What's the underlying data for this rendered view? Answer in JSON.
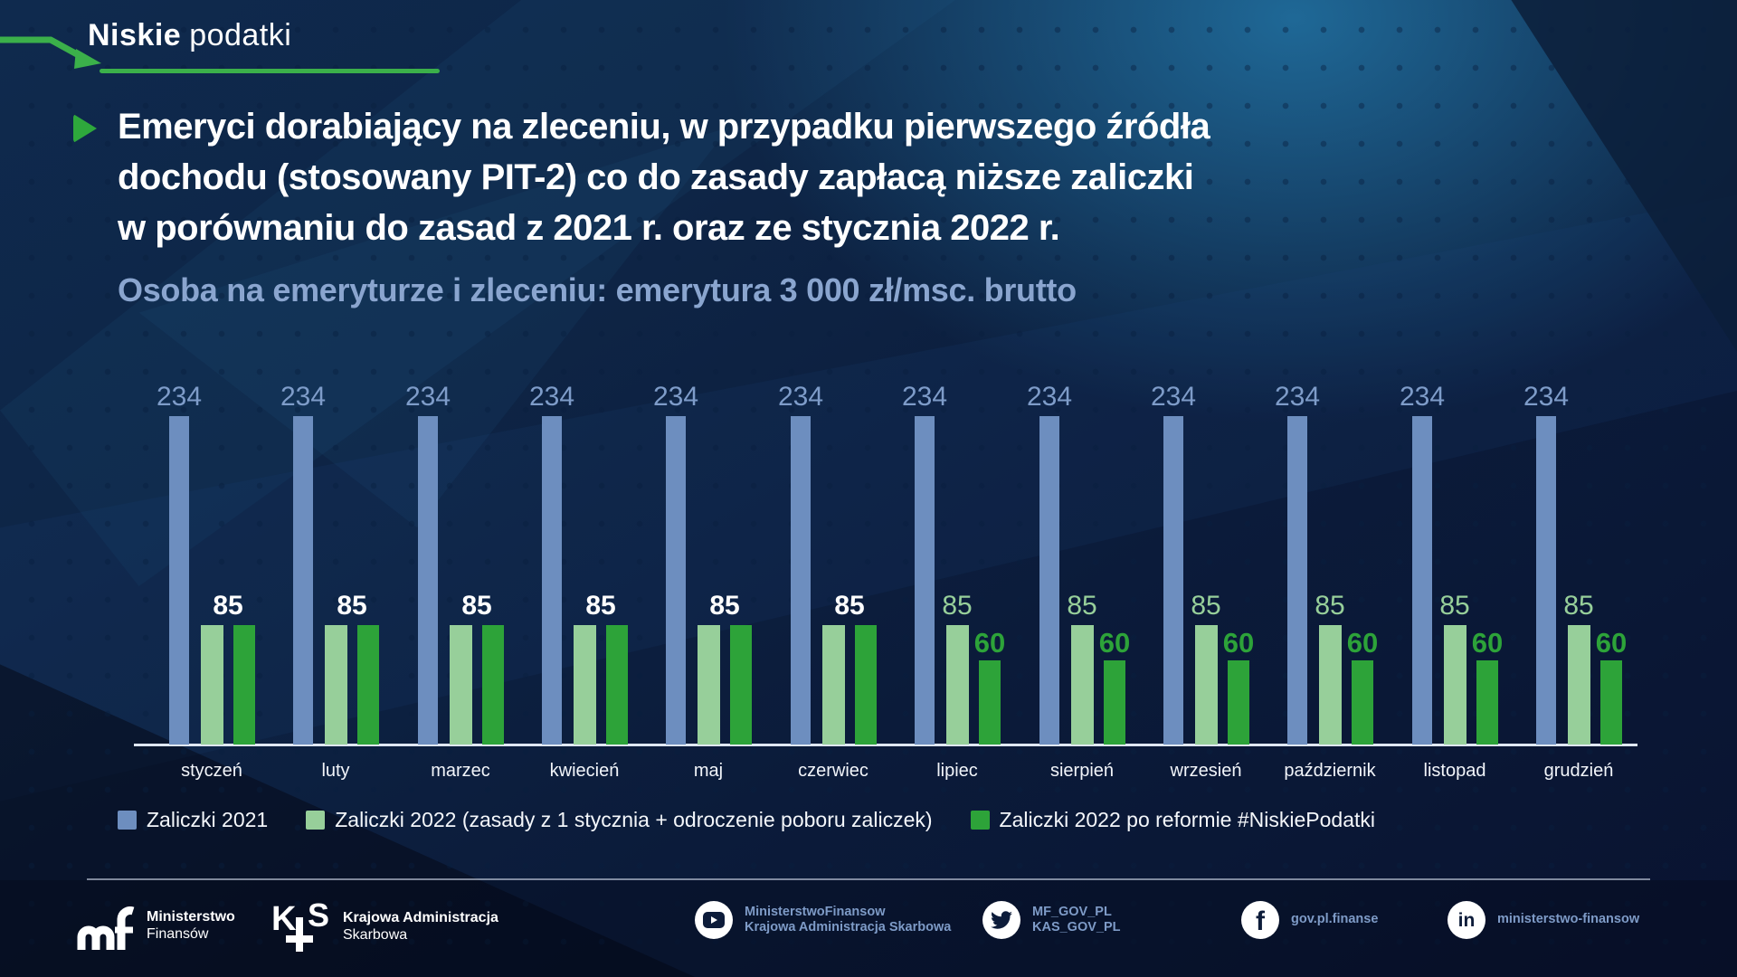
{
  "brand": {
    "name_bold": "Niskie",
    "name_light": "podatki"
  },
  "heading": {
    "line1": "Emeryci dorabiający na zleceniu, w przypadku pierwszego źródła",
    "line2": "dochodu (stosowany PIT-2) co do zasady zapłacą niższe zaliczki",
    "line3": "w porównaniu do zasad z 2021 r. oraz ze stycznia 2022 r."
  },
  "subtitle": "Osoba na emeryturze i zleceniu: emerytura 3 000 zł/msc. brutto",
  "chart_data": {
    "type": "bar",
    "title": "Osoba na emeryturze i zleceniu: emerytura 3 000 zł/msc. brutto",
    "categories": [
      "styczeń",
      "luty",
      "marzec",
      "kwiecień",
      "maj",
      "czerwiec",
      "lipiec",
      "sierpień",
      "wrzesień",
      "październik",
      "listopad",
      "grudzień"
    ],
    "series": [
      {
        "name": "Zaliczki 2021",
        "color": "#6d8ebf",
        "values": [
          234,
          234,
          234,
          234,
          234,
          234,
          234,
          234,
          234,
          234,
          234,
          234
        ]
      },
      {
        "name": "Zaliczki 2022 (zasady z 1 stycznia + odroczenie poboru zaliczek)",
        "color": "#97cf9a",
        "values": [
          85,
          85,
          85,
          85,
          85,
          85,
          85,
          85,
          85,
          85,
          85,
          85
        ]
      },
      {
        "name": "Zaliczki 2022 po reformie #NiskiePodatki",
        "color": "#2da339",
        "values": [
          85,
          85,
          85,
          85,
          85,
          85,
          60,
          60,
          60,
          60,
          60,
          60
        ]
      }
    ],
    "ylim": [
      0,
      250
    ],
    "grid": false,
    "value_labels": true,
    "legend_position": "bottom"
  },
  "legend": [
    {
      "label": "Zaliczki 2021",
      "color": "#6d8ebf"
    },
    {
      "label": "Zaliczki 2022 (zasady z 1 stycznia + odroczenie poboru zaliczek)",
      "color": "#97cf9a"
    },
    {
      "label": "Zaliczki 2022 po reformie #NiskiePodatki",
      "color": "#2da339"
    }
  ],
  "footer": {
    "ministry": {
      "line1": "Ministerstwo",
      "line2": "Finansów"
    },
    "kas": {
      "line1": "Krajowa Administracja",
      "line2": "Skarbowa"
    },
    "youtube": {
      "line1": "MinisterstwoFinansow",
      "line2": "Krajowa Administracja Skarbowa"
    },
    "twitter": {
      "line1": "MF_GOV_PL",
      "line2": "KAS_GOV_PL"
    },
    "facebook": {
      "line1": "gov.pl.finanse"
    },
    "linkedin": {
      "line1": "ministerstwo-finansow"
    }
  },
  "colors": {
    "accent_green": "#3bb04a",
    "play_green": "#2ea83c",
    "bar_2021": "#6d8ebf",
    "bar_2022_jan": "#97cf9a",
    "bar_2022_reform": "#2da339",
    "label_2021": "#7e9cc9",
    "subtitle_blue": "#8aa5cf",
    "footer_text_blue": "#7e9bc7"
  }
}
